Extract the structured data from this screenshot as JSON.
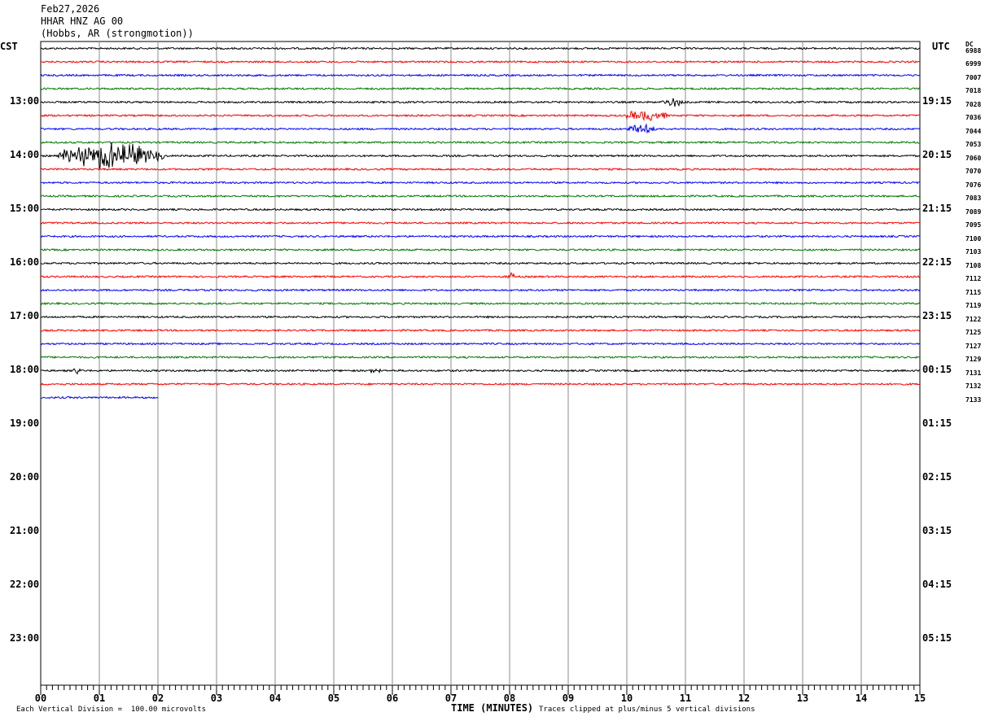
{
  "header": {
    "date": "Feb27,2026",
    "station": "HHAR HNZ AG 00",
    "location": "(Hobbs, AR (strongmotion))"
  },
  "chart_data": {
    "type": "line",
    "left_axis_label": "CST",
    "right_axis_label": "UTC",
    "dc_label": "DC",
    "xlabel": "TIME (MINUTES)",
    "x_ticks": [
      "00",
      "01",
      "02",
      "03",
      "04",
      "05",
      "06",
      "07",
      "08",
      "09",
      "10",
      "11",
      "12",
      "13",
      "14",
      "15"
    ],
    "xlim": [
      0,
      15
    ],
    "left_hour_labels": [
      "13:00",
      "14:00",
      "15:00",
      "16:00",
      "17:00",
      "18:00",
      "19:00",
      "20:00",
      "21:00",
      "22:00",
      "23:00"
    ],
    "right_hour_labels": [
      "19:15",
      "20:15",
      "21:15",
      "22:15",
      "23:15",
      "00:15",
      "01:15",
      "02:15",
      "03:15",
      "04:15",
      "05:15"
    ],
    "trace_colors": [
      "#000000",
      "#ff0000",
      "#0000ff",
      "#007700"
    ],
    "traces_per_hour": 4,
    "trace_count": 27,
    "last_trace_end_minute": 2,
    "dc_offsets": [
      "6988",
      "6999",
      "7007",
      "7018",
      "7028",
      "7036",
      "7044",
      "7053",
      "7060",
      "7070",
      "7076",
      "7083",
      "7089",
      "7095",
      "7100",
      "7103",
      "7108",
      "7112",
      "7115",
      "7119",
      "7122",
      "7125",
      "7127",
      "7129",
      "7131",
      "7132",
      "7133"
    ],
    "events": [
      {
        "trace": 8,
        "from_minute": 0.3,
        "to_minute": 2.1,
        "amplitude": 14
      },
      {
        "trace": 4,
        "from_minute": 10.6,
        "to_minute": 11.0,
        "amplitude": 6
      },
      {
        "trace": 5,
        "from_minute": 10.0,
        "to_minute": 10.7,
        "amplitude": 7
      },
      {
        "trace": 6,
        "from_minute": 10.0,
        "to_minute": 10.5,
        "amplitude": 6
      },
      {
        "trace": 17,
        "from_minute": 7.95,
        "to_minute": 8.1,
        "amplitude": 4
      },
      {
        "trace": 24,
        "from_minute": 0.55,
        "to_minute": 0.7,
        "amplitude": 4
      },
      {
        "trace": 24,
        "from_minute": 5.6,
        "to_minute": 5.8,
        "amplitude": 4
      }
    ],
    "footer_left": "Each Vertical Division =  100.00 microvolts",
    "footer_right": "Traces clipped at plus/minus 5 vertical divisions"
  }
}
